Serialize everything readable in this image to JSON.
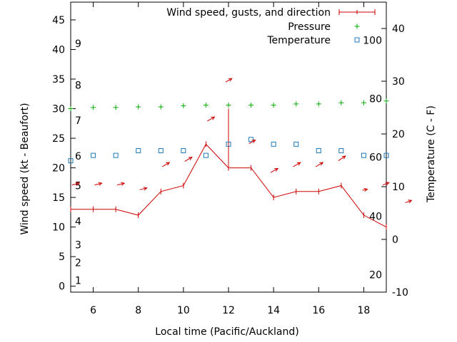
{
  "chart_data": {
    "type": "line",
    "xlabel": "Local time (Pacific/Auckland)",
    "ylabel_left": "Wind speed (kt - Beaufort)",
    "ylabel_right": "Temperature (C - F)",
    "x_range": [
      5,
      19
    ],
    "y_left_range": [
      -1,
      48
    ],
    "y_right_range": [
      -10,
      45
    ],
    "x_ticks": [
      6,
      8,
      10,
      12,
      14,
      16,
      18
    ],
    "y_left_ticks": [
      0,
      5,
      10,
      15,
      20,
      25,
      30,
      35,
      40,
      45
    ],
    "y_right_ticks": [
      -10,
      0,
      10,
      20,
      30,
      40
    ],
    "beaufort_labels": [
      {
        "label": "1",
        "kt": 1
      },
      {
        "label": "2",
        "kt": 4
      },
      {
        "label": "3",
        "kt": 7
      },
      {
        "label": "4",
        "kt": 11
      },
      {
        "label": "5",
        "kt": 17
      },
      {
        "label": "6",
        "kt": 22
      },
      {
        "label": "7",
        "kt": 28
      },
      {
        "label": "8",
        "kt": 34
      },
      {
        "label": "9",
        "kt": 41
      }
    ],
    "fahrenheit_labels": [
      {
        "label": "20",
        "celsius": -6.7
      },
      {
        "label": "40",
        "celsius": 4.4
      },
      {
        "label": "60",
        "celsius": 15.6
      },
      {
        "label": "80",
        "celsius": 26.7
      },
      {
        "label": "100",
        "celsius": 37.8
      }
    ],
    "legend": {
      "placement": "top-right",
      "entries": [
        {
          "label": "Wind speed, gusts, and direction",
          "symbol": "line-tick",
          "color": "#cc0000"
        },
        {
          "label": "Pressure",
          "symbol": "plus",
          "color": "#00aa00"
        },
        {
          "label": "Temperature",
          "symbol": "square",
          "color": "#1f77b4"
        }
      ]
    },
    "series": [
      {
        "name": "Wind speed, gusts, and direction",
        "color": "#cc0000",
        "x": [
          5,
          6,
          7,
          8,
          9,
          10,
          11,
          12,
          13,
          14,
          15,
          16,
          17,
          18,
          19
        ],
        "y": [
          13,
          13,
          13,
          12,
          16,
          17,
          24,
          20,
          20,
          15,
          16,
          16,
          17,
          12,
          10
        ],
        "gusts": [
          {
            "x": 12,
            "low": 20,
            "high": 30
          }
        ]
      },
      {
        "name": "Pressure",
        "color": "#00aa00",
        "x": [
          5,
          6,
          7,
          8,
          9,
          10,
          11,
          12,
          13,
          14,
          15,
          16,
          17,
          18,
          19
        ],
        "y": [
          30,
          30.2,
          30.2,
          30.3,
          30.3,
          30.5,
          30.6,
          30.6,
          30.6,
          30.6,
          30.8,
          30.8,
          31,
          31,
          31.3
        ]
      },
      {
        "name": "Temperature",
        "color": "#1f77b4",
        "x": [
          5,
          6,
          7,
          8,
          9,
          10,
          11,
          12,
          13,
          14,
          15,
          16,
          17,
          18,
          19
        ],
        "y": [
          21.2,
          22.1,
          22.1,
          22.9,
          22.9,
          22.9,
          22.1,
          24,
          24.8,
          24,
          24,
          22.9,
          22.9,
          22.1,
          22.1
        ]
      }
    ],
    "wind_arrows": [
      {
        "x": 5.06,
        "y": 17.1,
        "dx": 0.32,
        "dy": 0.3
      },
      {
        "x": 6.06,
        "y": 17.1,
        "dx": 0.32,
        "dy": 0.3
      },
      {
        "x": 7.06,
        "y": 17.1,
        "dx": 0.32,
        "dy": 0.3
      },
      {
        "x": 8.06,
        "y": 16.3,
        "dx": 0.32,
        "dy": 0.3
      },
      {
        "x": 9.06,
        "y": 20.2,
        "dx": 0.32,
        "dy": 0.7
      },
      {
        "x": 10.06,
        "y": 21.1,
        "dx": 0.32,
        "dy": 0.7
      },
      {
        "x": 11.06,
        "y": 27.9,
        "dx": 0.32,
        "dy": 0.7
      },
      {
        "x": 11.87,
        "y": 34.5,
        "dx": 0.28,
        "dy": 0.6
      },
      {
        "x": 12.91,
        "y": 24.1,
        "dx": 0.28,
        "dy": 0.6
      },
      {
        "x": 13.87,
        "y": 19.2,
        "dx": 0.32,
        "dy": 0.7
      },
      {
        "x": 14.87,
        "y": 20.2,
        "dx": 0.32,
        "dy": 0.7
      },
      {
        "x": 15.87,
        "y": 20.2,
        "dx": 0.32,
        "dy": 0.7
      },
      {
        "x": 16.87,
        "y": 21.2,
        "dx": 0.32,
        "dy": 0.8
      },
      {
        "x": 17.94,
        "y": 16.2,
        "dx": 0.22,
        "dy": 0.2
      },
      {
        "x": 18.84,
        "y": 17.1,
        "dx": 0.28,
        "dy": 0.4
      },
      {
        "x": 19.84,
        "y": 14.1,
        "dx": 0.28,
        "dy": 0.4
      }
    ]
  }
}
